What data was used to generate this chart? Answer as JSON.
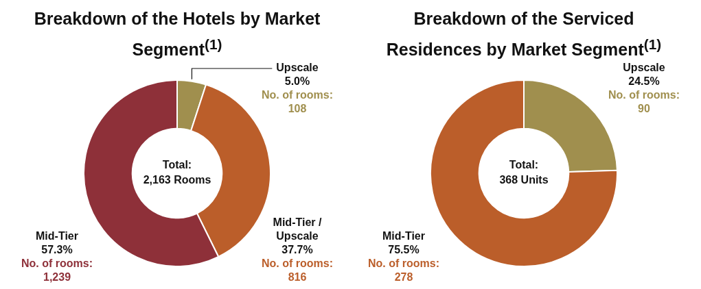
{
  "chart_data": [
    {
      "type": "donut",
      "title": "Breakdown of the Hotels by Market Segment$^{(1)}$",
      "categories": [
        "Upscale",
        "Mid-Tier / Upscale",
        "Mid-Tier"
      ],
      "values": [
        5.0,
        37.7,
        57.3
      ],
      "value_labels": [
        "5.0%\nNo. of rooms:\n108",
        "37.7%\nNo. of rooms:\n816",
        "57.3%\nNo. of rooms:\n1,239"
      ],
      "colors": [
        "#a08f4e",
        "#bb5e2a",
        "#8e3039"
      ],
      "annotations": [
        "Total:\n2,163 Rooms"
      ],
      "legend": false
    },
    {
      "type": "donut",
      "title": "Breakdown of the Serviced Residences by Market Segment$^{(1)}$",
      "categories": [
        "Upscale",
        "Mid-Tier"
      ],
      "values": [
        24.5,
        75.5
      ],
      "value_labels": [
        "24.5%\nNo. of rooms:\n90",
        "75.5%\nNo. of rooms:\n278"
      ],
      "colors": [
        "#a08f4e",
        "#bb5e2a"
      ],
      "annotations": [
        "Total:\n368 Units"
      ],
      "legend": false
    }
  ]
}
